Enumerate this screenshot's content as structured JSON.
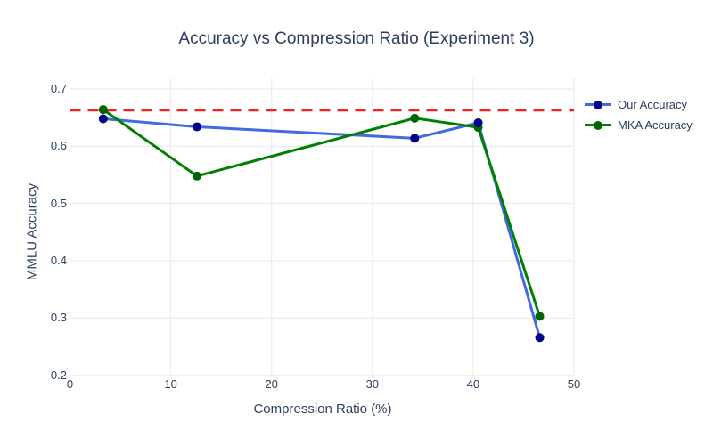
{
  "chart_data": {
    "type": "line",
    "title": "Accuracy vs Compression Ratio (Experiment 3)",
    "xlabel": "Compression Ratio (%)",
    "ylabel": "MMLU Accuracy",
    "x": [
      3.3,
      12.6,
      34.2,
      40.5,
      46.6
    ],
    "series": [
      {
        "name": "Our Accuracy",
        "values": [
          0.648,
          0.634,
          0.614,
          0.641,
          0.266
        ],
        "line_color": "#4169e1",
        "marker_color": "#00008b"
      },
      {
        "name": "MKA Accuracy",
        "values": [
          0.664,
          0.548,
          0.649,
          0.633,
          0.303
        ],
        "line_color": "#008000",
        "marker_color": "#006400"
      }
    ],
    "baseline": {
      "value": 0.663,
      "color": "#ee2222",
      "style": "dashed"
    },
    "x_ticks": [
      0,
      10,
      20,
      30,
      40,
      50
    ],
    "y_ticks": [
      0.2,
      0.3,
      0.4,
      0.5,
      0.6,
      0.7
    ],
    "xlim": [
      0,
      50
    ],
    "ylim": [
      0.2,
      0.72
    ],
    "grid": true,
    "legend_position": "outside-top-right",
    "text_color": "#2a3f5f",
    "grid_color": "#e9e9e9",
    "background_color": "#ffffff"
  }
}
